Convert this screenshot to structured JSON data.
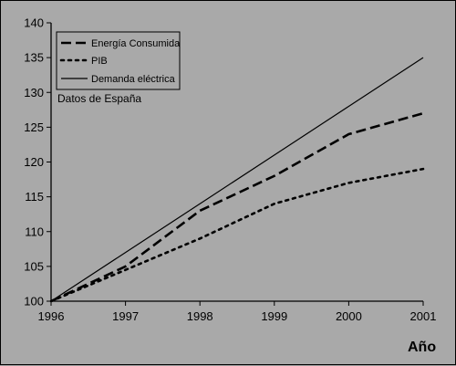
{
  "chart_data": {
    "type": "line",
    "x": [
      1996,
      1997,
      1998,
      1999,
      2000,
      2001
    ],
    "xlabel": "Año",
    "ylabel": "",
    "ylim": [
      100,
      140
    ],
    "yticks": [
      100,
      105,
      110,
      115,
      120,
      125,
      130,
      135,
      140
    ],
    "grid": false,
    "legend_position": "top-left",
    "annotation": "Datos de España",
    "series": [
      {
        "name": "Energía Consumida",
        "style": "dashed",
        "color": "#000000",
        "values": [
          100,
          105,
          113,
          118,
          124,
          127
        ]
      },
      {
        "name": "PIB",
        "style": "dotted",
        "color": "#000000",
        "values": [
          100,
          104.5,
          109,
          114,
          117,
          119
        ]
      },
      {
        "name": "Demanda eléctrica",
        "style": "solid",
        "color": "#000000",
        "values": [
          100,
          107,
          114,
          121,
          128,
          135
        ]
      }
    ]
  },
  "colors": {
    "background": "#a9a9a9",
    "line": "#000000"
  }
}
